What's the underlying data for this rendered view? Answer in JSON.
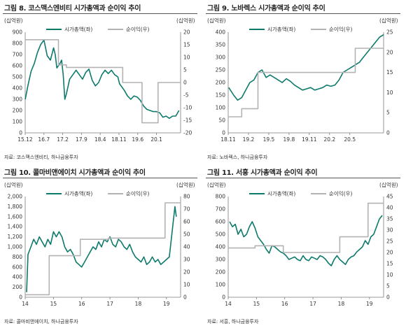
{
  "colors": {
    "market_cap": "#0d7a6c",
    "net_income": "#b3b3b3",
    "axis": "#7a7a7a"
  },
  "panels": [
    {
      "title": "그림 8. 코스맥스엔비티 시가총액과 순이익 추이",
      "source": "자료: 코스맥스엔비티, 하나금융투자"
    },
    {
      "title": "그림 9. 노바렉스 시가총액과 순이익 추이",
      "source": "자료: 노바렉스, 하나금융투자"
    },
    {
      "title": "그림 10. 콜마비앤에이치 시가총액과 순이익 추이",
      "source": "자료: 콜마비앤에이치, 하나금융투자"
    },
    {
      "title": "그림 11. 서흥 시가총액과 순이익 추이",
      "source": "자료: 서흥, 하나금융투자"
    }
  ],
  "chart_data": [
    {
      "type": "line",
      "ylabel_left": "(십억원)",
      "ylabel_right": "(십억원)",
      "x_ticks": [
        "15.12",
        "16.7",
        "17.2",
        "17.9",
        "18.4",
        "18.11",
        "19.6",
        "20.1"
      ],
      "x_range": [
        2015.917,
        2020.75
      ],
      "yleft": {
        "min": 0,
        "max": 900,
        "ticks": [
          0,
          100,
          200,
          300,
          400,
          500,
          600,
          700,
          800,
          900
        ]
      },
      "yright": {
        "min": -20,
        "max": 20,
        "ticks": [
          -20,
          -15,
          -10,
          -5,
          0,
          5,
          10,
          15,
          20
        ]
      },
      "series": [
        {
          "name": "시가총액(좌)",
          "axis": "left",
          "x": [
            2015.92,
            2016.0,
            2016.1,
            2016.2,
            2016.3,
            2016.4,
            2016.5,
            2016.55,
            2016.6,
            2016.7,
            2016.8,
            2016.85,
            2016.9,
            2017.0,
            2017.05,
            2017.1,
            2017.15,
            2017.2,
            2017.3,
            2017.4,
            2017.5,
            2017.6,
            2017.7,
            2017.8,
            2017.9,
            2018.0,
            2018.1,
            2018.2,
            2018.3,
            2018.4,
            2018.5,
            2018.6,
            2018.7,
            2018.8,
            2018.85,
            2018.9,
            2019.0,
            2019.1,
            2019.2,
            2019.3,
            2019.4,
            2019.5,
            2019.6,
            2019.7,
            2019.8,
            2019.9,
            2020.0,
            2020.1,
            2020.2,
            2020.3,
            2020.4,
            2020.5,
            2020.6,
            2020.7
          ],
          "y": [
            300,
            420,
            550,
            620,
            720,
            790,
            830,
            760,
            690,
            650,
            760,
            700,
            580,
            620,
            650,
            520,
            300,
            350,
            480,
            520,
            560,
            520,
            480,
            540,
            570,
            470,
            420,
            450,
            520,
            560,
            530,
            560,
            520,
            500,
            440,
            420,
            380,
            330,
            300,
            330,
            320,
            290,
            240,
            210,
            200,
            190,
            190,
            180,
            140,
            150,
            130,
            150,
            150,
            200
          ]
        },
        {
          "name": "순이익(우)",
          "axis": "right",
          "step": true,
          "x": [
            2015.92,
            2016.0,
            2016.0,
            2016.95,
            2016.95,
            2017.2,
            2017.2,
            2017.95,
            2017.95,
            2018.95,
            2018.95,
            2019.55,
            2019.55,
            2020.05,
            2020.05,
            2020.75
          ],
          "y": [
            17,
            17,
            17,
            17,
            7,
            7,
            6,
            6,
            6,
            6,
            0,
            0,
            -16,
            -16,
            0,
            0
          ]
        }
      ]
    },
    {
      "type": "line",
      "ylabel_left": "(십억원)",
      "ylabel_right": "(십억원)",
      "x_ticks": [
        "18.11",
        "19.2",
        "19.5",
        "19.8",
        "19.11",
        "20.2",
        "20.5"
      ],
      "x_range": [
        2018.833,
        2020.75
      ],
      "yleft": {
        "min": 0,
        "max": 400,
        "ticks": [
          0,
          50,
          100,
          150,
          200,
          250,
          300,
          350,
          400
        ]
      },
      "yright": {
        "min": 0,
        "max": 25,
        "ticks": [
          0,
          5,
          10,
          15,
          20,
          25
        ]
      },
      "series": [
        {
          "name": "시가총액(좌)",
          "axis": "left",
          "x": [
            2018.84,
            2018.9,
            2018.95,
            2019.0,
            2019.05,
            2019.1,
            2019.15,
            2019.2,
            2019.25,
            2019.3,
            2019.35,
            2019.4,
            2019.45,
            2019.5,
            2019.55,
            2019.6,
            2019.65,
            2019.7,
            2019.75,
            2019.8,
            2019.85,
            2019.9,
            2019.95,
            2020.0,
            2020.05,
            2020.1,
            2020.15,
            2020.2,
            2020.25,
            2020.3,
            2020.35,
            2020.4,
            2020.45,
            2020.5,
            2020.55,
            2020.6,
            2020.65,
            2020.7,
            2020.75
          ],
          "y": [
            180,
            150,
            130,
            140,
            170,
            200,
            210,
            240,
            250,
            220,
            230,
            220,
            210,
            200,
            215,
            205,
            190,
            180,
            170,
            175,
            180,
            170,
            175,
            180,
            190,
            185,
            190,
            210,
            240,
            250,
            260,
            270,
            280,
            300,
            320,
            340,
            360,
            380,
            390
          ]
        },
        {
          "name": "순이익(우)",
          "axis": "right",
          "step": true,
          "x": [
            2018.84,
            2019.0,
            2019.0,
            2019.2,
            2019.2,
            2019.95,
            2019.95,
            2020.4,
            2020.4,
            2020.75
          ],
          "y": [
            4,
            4,
            6,
            6,
            15,
            15,
            15,
            15,
            21,
            21
          ]
        }
      ]
    },
    {
      "type": "line",
      "ylabel_left": "(십억원)",
      "ylabel_right": "(십억원)",
      "x_ticks": [
        "14",
        "15",
        "16",
        "17",
        "18",
        "19"
      ],
      "x_range": [
        2014.0,
        2019.5
      ],
      "yleft": {
        "min": 0,
        "max": 2000,
        "ticks": [
          0,
          200,
          400,
          600,
          800,
          1000,
          1200,
          1400,
          1600,
          1800,
          2000
        ]
      },
      "yright": {
        "min": 0,
        "max": 80,
        "ticks": [
          0,
          10,
          20,
          30,
          40,
          50,
          60,
          70,
          80
        ]
      },
      "series": [
        {
          "name": "시가총액(좌)",
          "axis": "left",
          "x": [
            2014.05,
            2014.1,
            2014.2,
            2014.3,
            2014.4,
            2014.5,
            2014.6,
            2014.7,
            2014.8,
            2014.9,
            2015.0,
            2015.1,
            2015.2,
            2015.3,
            2015.4,
            2015.5,
            2015.6,
            2015.7,
            2015.8,
            2015.9,
            2016.0,
            2016.1,
            2016.2,
            2016.3,
            2016.4,
            2016.5,
            2016.6,
            2016.7,
            2016.8,
            2016.9,
            2017.0,
            2017.1,
            2017.2,
            2017.3,
            2017.4,
            2017.5,
            2017.6,
            2017.7,
            2017.8,
            2017.9,
            2018.0,
            2018.1,
            2018.2,
            2018.3,
            2018.4,
            2018.5,
            2018.6,
            2018.7,
            2018.8,
            2018.9,
            2019.0,
            2019.1,
            2019.2,
            2019.3,
            2019.35
          ],
          "y": [
            100,
            850,
            1000,
            1150,
            1050,
            1200,
            1100,
            1000,
            1150,
            1050,
            1300,
            1200,
            1300,
            1200,
            1000,
            900,
            950,
            850,
            700,
            650,
            600,
            700,
            800,
            900,
            1000,
            950,
            1100,
            1000,
            1150,
            1100,
            1200,
            1050,
            1000,
            1150,
            1100,
            1000,
            950,
            1050,
            900,
            800,
            750,
            700,
            800,
            650,
            700,
            800,
            700,
            750,
            650,
            700,
            750,
            800,
            1300,
            1800,
            1600
          ]
        },
        {
          "name": "순이익(우)",
          "axis": "right",
          "step": true,
          "x": [
            2014.0,
            2014.85,
            2014.85,
            2015.95,
            2015.95,
            2016.95,
            2016.95,
            2018.95,
            2018.95,
            2019.5
          ],
          "y": [
            2,
            2,
            33,
            33,
            46,
            46,
            47,
            47,
            75,
            75
          ]
        }
      ]
    },
    {
      "type": "line",
      "ylabel_left": "(십억원)",
      "ylabel_right": "(십억원)",
      "x_ticks": [
        "14",
        "15",
        "16",
        "17",
        "18",
        "19"
      ],
      "x_range": [
        2014.0,
        2019.5
      ],
      "yleft": {
        "min": 0,
        "max": 800,
        "ticks": [
          0,
          100,
          200,
          300,
          400,
          500,
          600,
          700,
          800
        ]
      },
      "yright": {
        "min": 0,
        "max": 45,
        "ticks": [
          0,
          5,
          10,
          15,
          20,
          25,
          30,
          35,
          40,
          45
        ]
      },
      "series": [
        {
          "name": "시가총액(좌)",
          "axis": "left",
          "x": [
            2014.05,
            2014.15,
            2014.25,
            2014.35,
            2014.45,
            2014.55,
            2014.65,
            2014.75,
            2014.85,
            2014.95,
            2015.05,
            2015.15,
            2015.25,
            2015.35,
            2015.45,
            2015.55,
            2015.65,
            2015.75,
            2015.85,
            2015.95,
            2016.05,
            2016.15,
            2016.25,
            2016.35,
            2016.45,
            2016.55,
            2016.65,
            2016.75,
            2016.85,
            2016.95,
            2017.05,
            2017.15,
            2017.25,
            2017.35,
            2017.45,
            2017.55,
            2017.65,
            2017.75,
            2017.85,
            2017.95,
            2018.05,
            2018.15,
            2018.25,
            2018.35,
            2018.45,
            2018.55,
            2018.65,
            2018.75,
            2018.85,
            2018.95,
            2019.05,
            2019.15,
            2019.25,
            2019.35,
            2019.45
          ],
          "y": [
            600,
            560,
            580,
            500,
            540,
            480,
            500,
            560,
            600,
            550,
            480,
            450,
            420,
            380,
            350,
            410,
            400,
            380,
            360,
            350,
            330,
            300,
            310,
            320,
            300,
            290,
            330,
            300,
            290,
            320,
            310,
            300,
            330,
            320,
            300,
            270,
            250,
            300,
            330,
            300,
            280,
            260,
            300,
            320,
            330,
            360,
            380,
            400,
            450,
            420,
            480,
            500,
            560,
            620,
            650
          ]
        },
        {
          "name": "순이익(우)",
          "axis": "right",
          "step": true,
          "x": [
            2014.0,
            2014.95,
            2014.95,
            2015.95,
            2015.95,
            2016.95,
            2016.95,
            2017.95,
            2017.95,
            2018.95,
            2018.95,
            2019.45,
            2019.45,
            2019.5
          ],
          "y": [
            22,
            22,
            23,
            23,
            20,
            20,
            20,
            20,
            27,
            27,
            42,
            42,
            42,
            42
          ]
        }
      ]
    }
  ]
}
